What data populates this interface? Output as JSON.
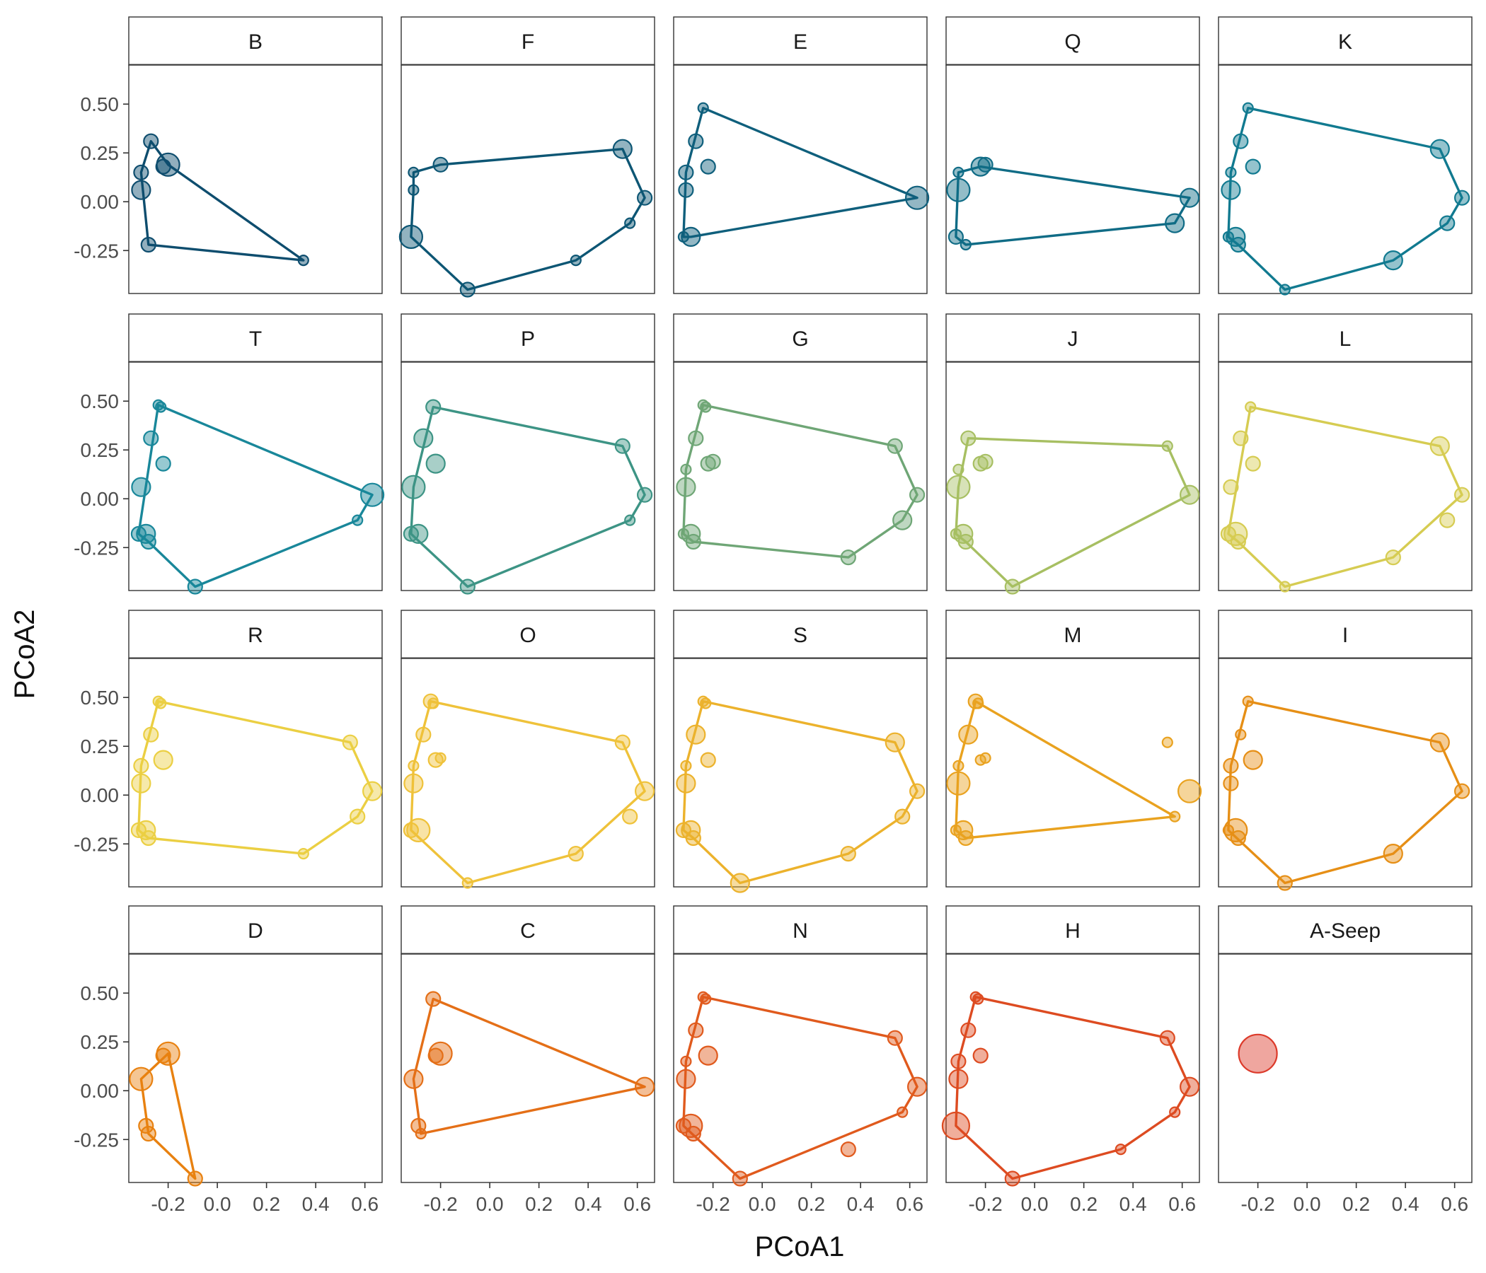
{
  "chart_data": {
    "type": "scatter",
    "subtype": "faceted convex hull ordination",
    "xlabel": "PCoA1",
    "ylabel": "PCoA2",
    "xlim": [
      -0.36,
      0.67
    ],
    "ylim": [
      -0.47,
      0.7
    ],
    "xticks": [
      -0.2,
      0.0,
      0.2,
      0.4,
      0.6
    ],
    "xtick_labels": [
      "-0.2",
      "0.0",
      "0.2",
      "0.4",
      "0.6"
    ],
    "yticks": [
      0.5,
      0.25,
      0.0,
      -0.25
    ],
    "ytick_labels": [
      "0.50",
      "0.25",
      "0.00",
      "-0.25"
    ],
    "grid": false,
    "legend": "none",
    "layout": {
      "rows": 4,
      "cols": 5
    },
    "sites": {
      "s1": [
        -0.24,
        0.48
      ],
      "s2": [
        -0.23,
        0.47
      ],
      "s3": [
        -0.27,
        0.31
      ],
      "s4": [
        -0.22,
        0.18
      ],
      "s5": [
        -0.2,
        0.19
      ],
      "s6": [
        -0.31,
        0.15
      ],
      "s7": [
        -0.31,
        0.06
      ],
      "s8": [
        -0.32,
        -0.18
      ],
      "s9": [
        -0.29,
        -0.18
      ],
      "s10": [
        -0.28,
        -0.22
      ],
      "s11": [
        -0.09,
        -0.45
      ],
      "s12": [
        0.35,
        -0.3
      ],
      "s13": [
        0.57,
        -0.11
      ],
      "s14": [
        0.63,
        0.02
      ],
      "s15": [
        0.54,
        0.27
      ]
    },
    "facets": [
      {
        "label": "B",
        "color": "#0e4d6e",
        "hull": [
          "s3",
          "s5",
          "s12",
          "s10",
          "s6"
        ],
        "points": [
          [
            "s3",
            2
          ],
          [
            "s4",
            2
          ],
          [
            "s5",
            4
          ],
          [
            "s6",
            2
          ],
          [
            "s7",
            3
          ],
          [
            "s10",
            2
          ],
          [
            "s12",
            1
          ]
        ]
      },
      {
        "label": "F",
        "color": "#0d5674",
        "hull": [
          "s6",
          "s5",
          "s15",
          "s14",
          "s13",
          "s12",
          "s11",
          "s8",
          "s7"
        ],
        "points": [
          [
            "s6",
            1
          ],
          [
            "s5",
            2
          ],
          [
            "s15",
            3
          ],
          [
            "s14",
            2
          ],
          [
            "s13",
            1
          ],
          [
            "s12",
            1
          ],
          [
            "s11",
            2
          ],
          [
            "s8",
            4
          ],
          [
            "s7",
            1
          ]
        ]
      },
      {
        "label": "E",
        "color": "#0f5f7c",
        "hull": [
          "s1",
          "s14",
          "s9",
          "s8",
          "s6"
        ],
        "points": [
          [
            "s1",
            1
          ],
          [
            "s3",
            2
          ],
          [
            "s4",
            2
          ],
          [
            "s6",
            2
          ],
          [
            "s7",
            2
          ],
          [
            "s9",
            3
          ],
          [
            "s8",
            1
          ],
          [
            "s14",
            4
          ]
        ]
      },
      {
        "label": "Q",
        "color": "#106c86",
        "hull": [
          "s6",
          "s4",
          "s14",
          "s13",
          "s10",
          "s8"
        ],
        "points": [
          [
            "s6",
            1
          ],
          [
            "s4",
            3
          ],
          [
            "s5",
            2
          ],
          [
            "s7",
            4
          ],
          [
            "s8",
            2
          ],
          [
            "s10",
            1
          ],
          [
            "s14",
            3
          ],
          [
            "s13",
            3
          ]
        ]
      },
      {
        "label": "K",
        "color": "#117a90",
        "hull": [
          "s1",
          "s15",
          "s14",
          "s13",
          "s12",
          "s11",
          "s10",
          "s8",
          "s6"
        ],
        "points": [
          [
            "s1",
            1
          ],
          [
            "s3",
            2
          ],
          [
            "s4",
            2
          ],
          [
            "s6",
            1
          ],
          [
            "s7",
            3
          ],
          [
            "s9",
            3
          ],
          [
            "s8",
            1
          ],
          [
            "s10",
            2
          ],
          [
            "s11",
            1
          ],
          [
            "s12",
            3
          ],
          [
            "s13",
            2
          ],
          [
            "s14",
            2
          ],
          [
            "s15",
            3
          ]
        ]
      },
      {
        "label": "T",
        "color": "#19879a",
        "hull": [
          "s1",
          "s14",
          "s13",
          "s11",
          "s10",
          "s8"
        ],
        "points": [
          [
            "s1",
            1
          ],
          [
            "s2",
            1
          ],
          [
            "s3",
            2
          ],
          [
            "s4",
            2
          ],
          [
            "s7",
            3
          ],
          [
            "s8",
            2
          ],
          [
            "s9",
            3
          ],
          [
            "s10",
            2
          ],
          [
            "s11",
            2
          ],
          [
            "s13",
            1
          ],
          [
            "s14",
            4
          ]
        ]
      },
      {
        "label": "P",
        "color": "#3d9485",
        "hull": [
          "s2",
          "s15",
          "s14",
          "s13",
          "s11",
          "s8",
          "s7"
        ],
        "points": [
          [
            "s2",
            2
          ],
          [
            "s3",
            3
          ],
          [
            "s4",
            3
          ],
          [
            "s7",
            4
          ],
          [
            "s8",
            2
          ],
          [
            "s9",
            3
          ],
          [
            "s11",
            2
          ],
          [
            "s13",
            1
          ],
          [
            "s14",
            2
          ],
          [
            "s15",
            2
          ]
        ]
      },
      {
        "label": "G",
        "color": "#6fa676",
        "hull": [
          "s1",
          "s15",
          "s14",
          "s13",
          "s12",
          "s10",
          "s8",
          "s6"
        ],
        "points": [
          [
            "s1",
            1
          ],
          [
            "s2",
            1
          ],
          [
            "s3",
            2
          ],
          [
            "s4",
            2
          ],
          [
            "s5",
            2
          ],
          [
            "s6",
            1
          ],
          [
            "s7",
            3
          ],
          [
            "s8",
            1
          ],
          [
            "s9",
            3
          ],
          [
            "s10",
            2
          ],
          [
            "s12",
            2
          ],
          [
            "s13",
            3
          ],
          [
            "s14",
            2
          ],
          [
            "s15",
            2
          ]
        ]
      },
      {
        "label": "J",
        "color": "#a7bf62",
        "hull": [
          "s3",
          "s15",
          "s14",
          "s11",
          "s10",
          "s8",
          "s7"
        ],
        "points": [
          [
            "s3",
            2
          ],
          [
            "s4",
            2
          ],
          [
            "s5",
            2
          ],
          [
            "s6",
            1
          ],
          [
            "s7",
            4
          ],
          [
            "s8",
            1
          ],
          [
            "s9",
            3
          ],
          [
            "s10",
            2
          ],
          [
            "s11",
            2
          ],
          [
            "s14",
            3
          ],
          [
            "s15",
            1
          ]
        ]
      },
      {
        "label": "L",
        "color": "#d6cc52",
        "hull": [
          "s2",
          "s15",
          "s14",
          "s12",
          "s11",
          "s10",
          "s8"
        ],
        "points": [
          [
            "s2",
            1
          ],
          [
            "s3",
            2
          ],
          [
            "s4",
            2
          ],
          [
            "s7",
            2
          ],
          [
            "s8",
            2
          ],
          [
            "s9",
            4
          ],
          [
            "s10",
            2
          ],
          [
            "s11",
            1
          ],
          [
            "s12",
            2
          ],
          [
            "s13",
            2
          ],
          [
            "s14",
            2
          ],
          [
            "s15",
            3
          ]
        ]
      },
      {
        "label": "R",
        "color": "#ebcf43",
        "hull": [
          "s1",
          "s15",
          "s14",
          "s13",
          "s12",
          "s10",
          "s8",
          "s6"
        ],
        "points": [
          [
            "s1",
            1
          ],
          [
            "s2",
            1
          ],
          [
            "s3",
            2
          ],
          [
            "s4",
            3
          ],
          [
            "s6",
            2
          ],
          [
            "s7",
            3
          ],
          [
            "s8",
            2
          ],
          [
            "s9",
            3
          ],
          [
            "s10",
            2
          ],
          [
            "s12",
            1
          ],
          [
            "s13",
            2
          ],
          [
            "s14",
            3
          ],
          [
            "s15",
            2
          ]
        ]
      },
      {
        "label": "O",
        "color": "#efc23a",
        "hull": [
          "s1",
          "s15",
          "s14",
          "s12",
          "s11",
          "s8",
          "s6"
        ],
        "points": [
          [
            "s1",
            2
          ],
          [
            "s2",
            1
          ],
          [
            "s3",
            2
          ],
          [
            "s4",
            2
          ],
          [
            "s5",
            1
          ],
          [
            "s6",
            1
          ],
          [
            "s7",
            3
          ],
          [
            "s8",
            2
          ],
          [
            "s9",
            4
          ],
          [
            "s11",
            1
          ],
          [
            "s12",
            2
          ],
          [
            "s13",
            2
          ],
          [
            "s14",
            3
          ],
          [
            "s15",
            2
          ]
        ]
      },
      {
        "label": "S",
        "color": "#ecb22c",
        "hull": [
          "s1",
          "s15",
          "s14",
          "s13",
          "s12",
          "s11",
          "s10",
          "s8",
          "s6"
        ],
        "points": [
          [
            "s1",
            1
          ],
          [
            "s2",
            1
          ],
          [
            "s3",
            3
          ],
          [
            "s4",
            2
          ],
          [
            "s6",
            1
          ],
          [
            "s7",
            3
          ],
          [
            "s8",
            2
          ],
          [
            "s9",
            3
          ],
          [
            "s10",
            2
          ],
          [
            "s11",
            3
          ],
          [
            "s12",
            2
          ],
          [
            "s13",
            2
          ],
          [
            "s14",
            2
          ],
          [
            "s15",
            3
          ]
        ]
      },
      {
        "label": "M",
        "color": "#e9a21f",
        "hull": [
          "s1",
          "s13",
          "s10",
          "s8",
          "s6"
        ],
        "points": [
          [
            "s1",
            2
          ],
          [
            "s2",
            1
          ],
          [
            "s3",
            3
          ],
          [
            "s4",
            1
          ],
          [
            "s5",
            1
          ],
          [
            "s6",
            1
          ],
          [
            "s7",
            4
          ],
          [
            "s8",
            1
          ],
          [
            "s9",
            3
          ],
          [
            "s10",
            2
          ],
          [
            "s13",
            1
          ],
          [
            "s14",
            4
          ],
          [
            "s15",
            1
          ]
        ]
      },
      {
        "label": "I",
        "color": "#e68f16",
        "hull": [
          "s1",
          "s15",
          "s14",
          "s12",
          "s11",
          "s8",
          "s6"
        ],
        "points": [
          [
            "s1",
            1
          ],
          [
            "s3",
            1
          ],
          [
            "s4",
            3
          ],
          [
            "s6",
            2
          ],
          [
            "s7",
            2
          ],
          [
            "s8",
            1
          ],
          [
            "s9",
            4
          ],
          [
            "s10",
            2
          ],
          [
            "s11",
            2
          ],
          [
            "s12",
            3
          ],
          [
            "s14",
            2
          ],
          [
            "s15",
            3
          ]
        ]
      },
      {
        "label": "D",
        "color": "#e88110",
        "hull": [
          "s7",
          "s5",
          "s11",
          "s10"
        ],
        "points": [
          [
            "s4",
            2
          ],
          [
            "s5",
            4
          ],
          [
            "s7",
            4
          ],
          [
            "s9",
            2
          ],
          [
            "s10",
            2
          ],
          [
            "s11",
            2
          ]
        ]
      },
      {
        "label": "C",
        "color": "#e46f17",
        "hull": [
          "s2",
          "s14",
          "s10",
          "s7"
        ],
        "points": [
          [
            "s2",
            2
          ],
          [
            "s4",
            2
          ],
          [
            "s5",
            4
          ],
          [
            "s7",
            3
          ],
          [
            "s9",
            2
          ],
          [
            "s10",
            1
          ],
          [
            "s14",
            3
          ]
        ]
      },
      {
        "label": "N",
        "color": "#e05a1d",
        "hull": [
          "s1",
          "s15",
          "s14",
          "s13",
          "s11",
          "s8",
          "s6"
        ],
        "points": [
          [
            "s1",
            1
          ],
          [
            "s2",
            1
          ],
          [
            "s3",
            2
          ],
          [
            "s4",
            3
          ],
          [
            "s6",
            1
          ],
          [
            "s7",
            3
          ],
          [
            "s8",
            2
          ],
          [
            "s9",
            4
          ],
          [
            "s10",
            2
          ],
          [
            "s11",
            2
          ],
          [
            "s12",
            2
          ],
          [
            "s13",
            1
          ],
          [
            "s14",
            3
          ],
          [
            "s15",
            2
          ]
        ]
      },
      {
        "label": "H",
        "color": "#dd4b21",
        "hull": [
          "s1",
          "s15",
          "s14",
          "s13",
          "s12",
          "s11",
          "s8",
          "s6"
        ],
        "points": [
          [
            "s1",
            1
          ],
          [
            "s2",
            1
          ],
          [
            "s3",
            2
          ],
          [
            "s4",
            2
          ],
          [
            "s6",
            2
          ],
          [
            "s7",
            3
          ],
          [
            "s8",
            5
          ],
          [
            "s11",
            2
          ],
          [
            "s12",
            1
          ],
          [
            "s13",
            1
          ],
          [
            "s14",
            3
          ],
          [
            "s15",
            2
          ]
        ]
      },
      {
        "label": "A-Seep",
        "color": "#dc3a2a",
        "hull": [],
        "points": [
          [
            "s5",
            6
          ]
        ]
      }
    ]
  }
}
